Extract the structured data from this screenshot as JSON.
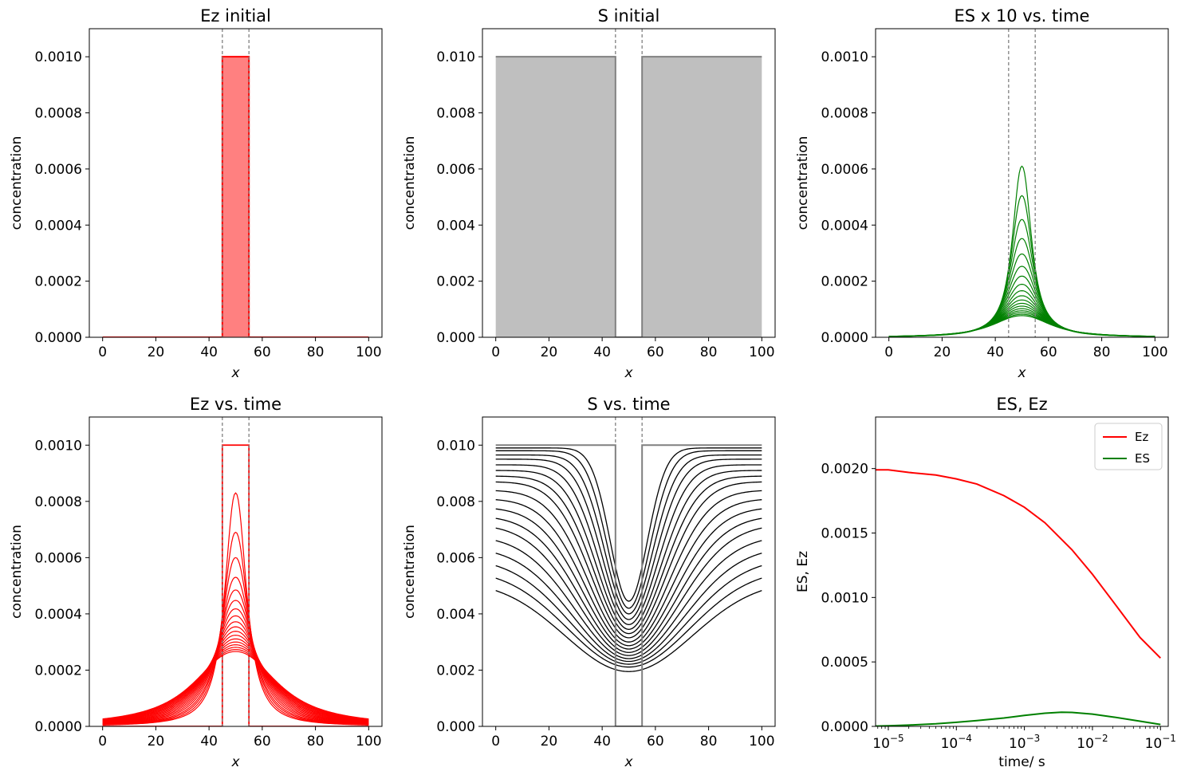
{
  "chart_data": [
    {
      "id": "ez-initial",
      "type": "area",
      "title": "Ez initial",
      "xlabel": "x",
      "ylabel": "concentration",
      "xlim": [
        -5,
        105
      ],
      "ylim": [
        0,
        0.0011
      ],
      "xticks": [
        0,
        20,
        40,
        60,
        80,
        100
      ],
      "xtick_labels": [
        "0",
        "20",
        "40",
        "60",
        "80",
        "100"
      ],
      "yticks": [
        0,
        0.0002,
        0.0004,
        0.0006,
        0.0008,
        0.001
      ],
      "ytick_labels": [
        "0.0000",
        "0.0002",
        "0.0004",
        "0.0006",
        "0.0008",
        "0.0010"
      ],
      "vlines": [
        45,
        55
      ],
      "profile": {
        "kind": "step",
        "x_start": 0,
        "x_end": 100,
        "x_lo": 45,
        "x_hi": 55,
        "inside": 0.001,
        "outside": 0
      },
      "color": "#ff0000",
      "fill": "#ff8080"
    },
    {
      "id": "s-initial",
      "type": "area",
      "title": "S initial",
      "xlabel": "x",
      "ylabel": "concentration",
      "xlim": [
        -5,
        105
      ],
      "ylim": [
        0,
        0.011
      ],
      "xticks": [
        0,
        20,
        40,
        60,
        80,
        100
      ],
      "xtick_labels": [
        "0",
        "20",
        "40",
        "60",
        "80",
        "100"
      ],
      "yticks": [
        0,
        0.002,
        0.004,
        0.006,
        0.008,
        0.01
      ],
      "ytick_labels": [
        "0.000",
        "0.002",
        "0.004",
        "0.006",
        "0.008",
        "0.010"
      ],
      "vlines": [
        45,
        55
      ],
      "profile": {
        "kind": "step",
        "x_start": 0,
        "x_end": 100,
        "x_lo": 45,
        "x_hi": 55,
        "inside": 0,
        "outside": 0.01
      },
      "color": "#808080",
      "fill": "#bfbfbf"
    },
    {
      "id": "es-vs-time",
      "type": "line",
      "title": "ES x 10 vs. time",
      "xlabel": "x",
      "ylabel": "concentration",
      "xlim": [
        -5,
        105
      ],
      "ylim": [
        0,
        0.0011
      ],
      "xticks": [
        0,
        20,
        40,
        60,
        80,
        100
      ],
      "xtick_labels": [
        "0",
        "20",
        "40",
        "60",
        "80",
        "100"
      ],
      "yticks": [
        0,
        0.0002,
        0.0004,
        0.0006,
        0.0008,
        0.001
      ],
      "ytick_labels": [
        "0.0000",
        "0.0002",
        "0.0004",
        "0.0006",
        "0.0008",
        "0.0010"
      ],
      "vlines": [
        45,
        55
      ],
      "color": "#008000",
      "curve_count": 18,
      "center": 50,
      "peaks": [
        0.00061,
        0.000505,
        0.00042,
        0.000352,
        0.000297,
        0.000253,
        0.000218,
        0.000189,
        0.000166,
        0.000148,
        0.000133,
        0.000121,
        0.000111,
        0.000102,
        9.45e-05,
        8.8e-05,
        8.2e-05,
        7.7e-05
      ],
      "widths": [
        4.2,
        4.7,
        5.2,
        5.7,
        6.2,
        6.7,
        7.2,
        7.7,
        8.2,
        8.7,
        9.2,
        9.7,
        10.2,
        10.7,
        11.2,
        11.7,
        12.2,
        12.7
      ]
    },
    {
      "id": "ez-vs-time",
      "type": "line",
      "title": "Ez vs. time",
      "xlabel": "x",
      "ylabel": "concentration",
      "xlim": [
        -5,
        105
      ],
      "ylim": [
        0,
        0.0011
      ],
      "xticks": [
        0,
        20,
        40,
        60,
        80,
        100
      ],
      "xtick_labels": [
        "0",
        "20",
        "40",
        "60",
        "80",
        "100"
      ],
      "yticks": [
        0,
        0.0002,
        0.0004,
        0.0006,
        0.0008,
        0.001
      ],
      "ytick_labels": [
        "0.0000",
        "0.0002",
        "0.0004",
        "0.0006",
        "0.0008",
        "0.0010"
      ],
      "vlines": [
        45,
        55
      ],
      "color": "#ff0000",
      "profile": {
        "kind": "step",
        "x_start": 0,
        "x_end": 100,
        "x_lo": 45,
        "x_hi": 55,
        "inside": 0.001,
        "outside": 0
      },
      "curve_count": 18,
      "center": 50,
      "peaks": [
        0.00083,
        0.00069,
        0.0006,
        0.00053,
        0.000485,
        0.000448,
        0.000418,
        0.000393,
        0.000372,
        0.000354,
        0.000338,
        0.000324,
        0.000311,
        0.0003,
        0.00029,
        0.000281,
        0.000273,
        0.000266
      ],
      "widths": [
        4.8,
        5.6,
        6.4,
        7.2,
        8.0,
        8.8,
        9.6,
        10.4,
        11.2,
        12.0,
        12.8,
        13.6,
        14.4,
        15.2,
        16.0,
        16.8,
        17.6,
        18.4
      ]
    },
    {
      "id": "s-vs-time",
      "type": "line",
      "title": "S vs. time",
      "xlabel": "x",
      "ylabel": "concentration",
      "xlim": [
        -5,
        105
      ],
      "ylim": [
        0,
        0.011
      ],
      "xticks": [
        0,
        20,
        40,
        60,
        80,
        100
      ],
      "xtick_labels": [
        "0",
        "20",
        "40",
        "60",
        "80",
        "100"
      ],
      "yticks": [
        0,
        0.002,
        0.004,
        0.006,
        0.008,
        0.01
      ],
      "ytick_labels": [
        "0.000",
        "0.002",
        "0.004",
        "0.006",
        "0.008",
        "0.010"
      ],
      "vlines": [
        45,
        55
      ],
      "color": "#000000",
      "initial_color": "#808080",
      "profile": {
        "kind": "step",
        "x_start": 0,
        "x_end": 100,
        "x_lo": 45,
        "x_hi": 55,
        "inside": 0,
        "outside": 0.01
      },
      "curve_count": 18,
      "center": 50,
      "edge_values": [
        0.0099,
        0.0098,
        0.00965,
        0.0095,
        0.0093,
        0.0091,
        0.0089,
        0.0087,
        0.0084,
        0.0081,
        0.0078,
        0.0075,
        0.0072,
        0.0068,
        0.0064,
        0.006,
        0.0056,
        0.0052
      ],
      "min_values": [
        0.00445,
        0.0042,
        0.004,
        0.0038,
        0.00362,
        0.00345,
        0.0033,
        0.00315,
        0.003,
        0.00287,
        0.00275,
        0.00263,
        0.00252,
        0.00241,
        0.00231,
        0.00221,
        0.00211,
        0.00195
      ],
      "widths": [
        7,
        8,
        9,
        10,
        11,
        12,
        13,
        14,
        15,
        16,
        17,
        18,
        19,
        20,
        21,
        22,
        23,
        24
      ]
    },
    {
      "id": "es-ez",
      "type": "line",
      "title": "ES, Ez",
      "xlabel": "time/ s",
      "ylabel": "ES, Ez",
      "xscale": "log",
      "xlim": [
        6.5e-06,
        0.13
      ],
      "ylim": [
        0,
        0.0024
      ],
      "xticks": [
        1e-05,
        0.0001,
        0.001,
        0.01,
        0.1
      ],
      "xtick_labels": [
        [
          "10",
          "−5"
        ],
        [
          "10",
          "−4"
        ],
        [
          "10",
          "−3"
        ],
        [
          "10",
          "−2"
        ],
        [
          "10",
          "−1"
        ]
      ],
      "yticks": [
        0,
        0.0005,
        0.001,
        0.0015,
        0.002
      ],
      "ytick_labels": [
        "0.0000",
        "0.0005",
        "0.0010",
        "0.0015",
        "0.0020"
      ],
      "legend": {
        "placement": "top-right",
        "entries": [
          "Ez",
          "ES"
        ]
      },
      "series": [
        {
          "name": "Ez",
          "color": "#ff0000",
          "x": [
            6.5e-06,
            1e-05,
            2e-05,
            5e-05,
            0.0001,
            0.0002,
            0.0005,
            0.001,
            0.002,
            0.005,
            0.01,
            0.02,
            0.05,
            0.1
          ],
          "y": [
            0.00199,
            0.00199,
            0.00197,
            0.00195,
            0.00192,
            0.00188,
            0.00179,
            0.0017,
            0.00158,
            0.00137,
            0.00118,
            0.00097,
            0.00069,
            0.00053
          ]
        },
        {
          "name": "ES",
          "color": "#008000",
          "x": [
            6.5e-06,
            1e-05,
            2e-05,
            5e-05,
            0.0001,
            0.0002,
            0.0005,
            0.001,
            0.002,
            0.0035,
            0.005,
            0.01,
            0.02,
            0.05,
            0.1
          ],
          "y": [
            2e-06,
            5e-06,
            1e-05,
            2e-05,
            3.2e-05,
            4.5e-05,
            6.5e-05,
            8.5e-05,
            0.000102,
            0.00011,
            0.000108,
            9.5e-05,
            7.3e-05,
            4e-05,
            1.5e-05
          ]
        }
      ]
    }
  ]
}
